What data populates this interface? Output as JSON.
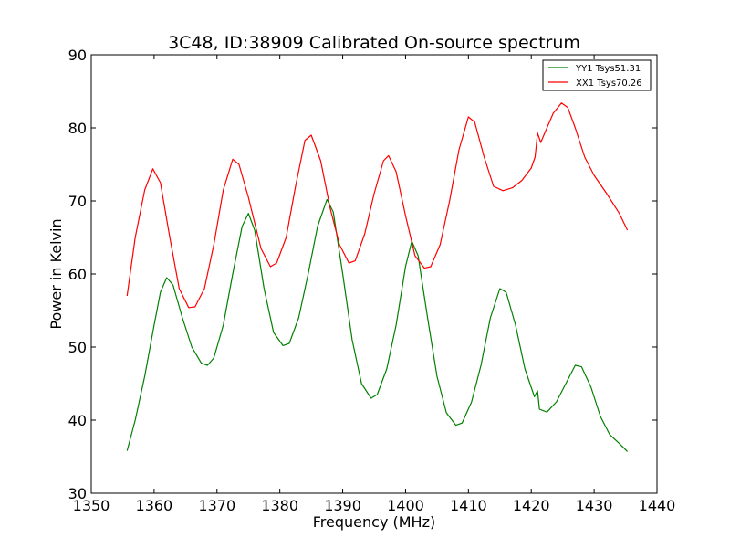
{
  "chart_data": {
    "type": "line",
    "title": "3C48, ID:38909 Calibrated On-source spectrum",
    "xlabel": "Frequency (MHz)",
    "ylabel": "Power in Kelvin",
    "xlim": [
      1350,
      1440
    ],
    "ylim": [
      30,
      90
    ],
    "x_ticks": [
      "1350",
      "1360",
      "1370",
      "1380",
      "1390",
      "1400",
      "1410",
      "1420",
      "1430",
      "1440"
    ],
    "y_ticks": [
      "30",
      "40",
      "50",
      "60",
      "70",
      "80",
      "90"
    ],
    "grid": false,
    "legend_position": "top-right",
    "series": [
      {
        "name": "YY1 Tsys51.31",
        "color": "#008000",
        "points": [
          [
            1355.7,
            35.8
          ],
          [
            1357,
            40
          ],
          [
            1358.5,
            46
          ],
          [
            1360,
            53
          ],
          [
            1361,
            57.5
          ],
          [
            1362,
            59.5
          ],
          [
            1363,
            58.5
          ],
          [
            1364.5,
            54
          ],
          [
            1366,
            50
          ],
          [
            1367.5,
            47.8
          ],
          [
            1368.5,
            47.5
          ],
          [
            1369.5,
            48.5
          ],
          [
            1371,
            53
          ],
          [
            1372.5,
            60
          ],
          [
            1374,
            66.5
          ],
          [
            1375,
            68.3
          ],
          [
            1376,
            66
          ],
          [
            1377.5,
            58
          ],
          [
            1379,
            52
          ],
          [
            1380.5,
            50.2
          ],
          [
            1381.5,
            50.5
          ],
          [
            1383,
            54
          ],
          [
            1384.5,
            60
          ],
          [
            1386,
            66.5
          ],
          [
            1387.5,
            70.2
          ],
          [
            1388.5,
            68.5
          ],
          [
            1390,
            60
          ],
          [
            1391.5,
            51
          ],
          [
            1393,
            45
          ],
          [
            1394.5,
            43
          ],
          [
            1395.5,
            43.5
          ],
          [
            1397,
            47
          ],
          [
            1398.5,
            53
          ],
          [
            1400,
            61
          ],
          [
            1401,
            64.5
          ],
          [
            1402,
            62.5
          ],
          [
            1403.5,
            54
          ],
          [
            1405,
            46
          ],
          [
            1406.5,
            41
          ],
          [
            1408,
            39.3
          ],
          [
            1409,
            39.6
          ],
          [
            1410.5,
            42.5
          ],
          [
            1412,
            47.5
          ],
          [
            1413.5,
            54
          ],
          [
            1415,
            58
          ],
          [
            1416,
            57.5
          ],
          [
            1417.5,
            53
          ],
          [
            1419,
            47
          ],
          [
            1420.5,
            43.2
          ],
          [
            1420.8,
            43.7
          ],
          [
            1421,
            44
          ],
          [
            1421.3,
            41.5
          ],
          [
            1422.5,
            41.1
          ],
          [
            1424,
            42.5
          ],
          [
            1425.5,
            45
          ],
          [
            1427,
            47.5
          ],
          [
            1428,
            47.3
          ],
          [
            1429.5,
            44.5
          ],
          [
            1431,
            40.5
          ],
          [
            1432.5,
            38
          ],
          [
            1434,
            36.8
          ],
          [
            1435.3,
            35.7
          ]
        ]
      },
      {
        "name": "XX1 Tsys70.26",
        "color": "#ff0000",
        "points": [
          [
            1355.7,
            57
          ],
          [
            1357,
            65
          ],
          [
            1358.5,
            71.5
          ],
          [
            1359.8,
            74.4
          ],
          [
            1361,
            72.5
          ],
          [
            1362.5,
            65
          ],
          [
            1364,
            58
          ],
          [
            1365.5,
            55.4
          ],
          [
            1366.5,
            55.5
          ],
          [
            1368,
            58
          ],
          [
            1369.5,
            64
          ],
          [
            1371,
            71.5
          ],
          [
            1372.5,
            75.7
          ],
          [
            1373.5,
            75
          ],
          [
            1375,
            70.5
          ],
          [
            1377,
            63.5
          ],
          [
            1378.5,
            61
          ],
          [
            1379.5,
            61.5
          ],
          [
            1381,
            65
          ],
          [
            1382.5,
            72
          ],
          [
            1384,
            78.3
          ],
          [
            1385,
            79
          ],
          [
            1386.5,
            75.5
          ],
          [
            1388,
            69
          ],
          [
            1389.5,
            64
          ],
          [
            1391,
            61.5
          ],
          [
            1392,
            61.8
          ],
          [
            1393.5,
            65.5
          ],
          [
            1395,
            71
          ],
          [
            1396.5,
            75.5
          ],
          [
            1397.3,
            76.2
          ],
          [
            1398.5,
            74
          ],
          [
            1400,
            68
          ],
          [
            1401.5,
            62.5
          ],
          [
            1403,
            60.8
          ],
          [
            1404,
            61
          ],
          [
            1405.5,
            64
          ],
          [
            1407,
            70
          ],
          [
            1408.5,
            77
          ],
          [
            1410,
            81.5
          ],
          [
            1411,
            80.8
          ],
          [
            1412.5,
            76
          ],
          [
            1414,
            72
          ],
          [
            1415.5,
            71.4
          ],
          [
            1417,
            71.8
          ],
          [
            1418.5,
            72.8
          ],
          [
            1420,
            74.5
          ],
          [
            1420.6,
            76
          ],
          [
            1421,
            79.3
          ],
          [
            1421.5,
            78
          ],
          [
            1422.5,
            80
          ],
          [
            1423.5,
            82
          ],
          [
            1424.8,
            83.4
          ],
          [
            1425.8,
            82.8
          ],
          [
            1427,
            80
          ],
          [
            1428.5,
            76
          ],
          [
            1430,
            73.5
          ],
          [
            1432,
            71
          ],
          [
            1434,
            68.3
          ],
          [
            1435.3,
            66
          ]
        ]
      }
    ]
  }
}
